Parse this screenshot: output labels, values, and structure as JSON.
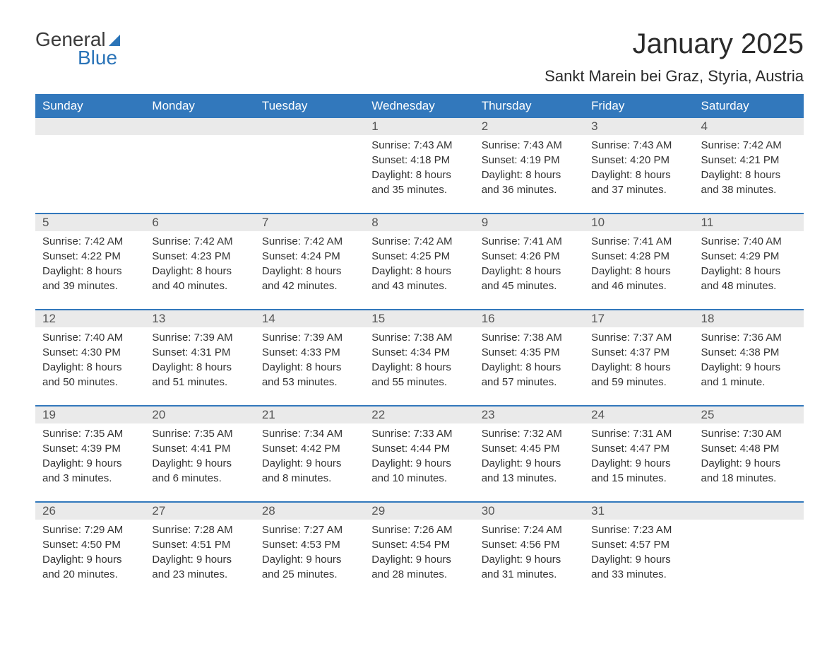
{
  "logo": {
    "general": "General",
    "blue": "Blue"
  },
  "title": "January 2025",
  "location": "Sankt Marein bei Graz, Styria, Austria",
  "colors": {
    "header_bg": "#3278bc",
    "header_text": "#ffffff",
    "daynum_bg": "#eaeaea",
    "daynum_text": "#555555",
    "body_text": "#333333",
    "logo_dark": "#3b3b3b",
    "logo_blue": "#2b74b8",
    "background": "#ffffff"
  },
  "days_of_week": [
    "Sunday",
    "Monday",
    "Tuesday",
    "Wednesday",
    "Thursday",
    "Friday",
    "Saturday"
  ],
  "weeks": [
    [
      {
        "day": "",
        "sunrise": "",
        "sunset": "",
        "daylight1": "",
        "daylight2": ""
      },
      {
        "day": "",
        "sunrise": "",
        "sunset": "",
        "daylight1": "",
        "daylight2": ""
      },
      {
        "day": "",
        "sunrise": "",
        "sunset": "",
        "daylight1": "",
        "daylight2": ""
      },
      {
        "day": "1",
        "sunrise": "Sunrise: 7:43 AM",
        "sunset": "Sunset: 4:18 PM",
        "daylight1": "Daylight: 8 hours",
        "daylight2": "and 35 minutes."
      },
      {
        "day": "2",
        "sunrise": "Sunrise: 7:43 AM",
        "sunset": "Sunset: 4:19 PM",
        "daylight1": "Daylight: 8 hours",
        "daylight2": "and 36 minutes."
      },
      {
        "day": "3",
        "sunrise": "Sunrise: 7:43 AM",
        "sunset": "Sunset: 4:20 PM",
        "daylight1": "Daylight: 8 hours",
        "daylight2": "and 37 minutes."
      },
      {
        "day": "4",
        "sunrise": "Sunrise: 7:42 AM",
        "sunset": "Sunset: 4:21 PM",
        "daylight1": "Daylight: 8 hours",
        "daylight2": "and 38 minutes."
      }
    ],
    [
      {
        "day": "5",
        "sunrise": "Sunrise: 7:42 AM",
        "sunset": "Sunset: 4:22 PM",
        "daylight1": "Daylight: 8 hours",
        "daylight2": "and 39 minutes."
      },
      {
        "day": "6",
        "sunrise": "Sunrise: 7:42 AM",
        "sunset": "Sunset: 4:23 PM",
        "daylight1": "Daylight: 8 hours",
        "daylight2": "and 40 minutes."
      },
      {
        "day": "7",
        "sunrise": "Sunrise: 7:42 AM",
        "sunset": "Sunset: 4:24 PM",
        "daylight1": "Daylight: 8 hours",
        "daylight2": "and 42 minutes."
      },
      {
        "day": "8",
        "sunrise": "Sunrise: 7:42 AM",
        "sunset": "Sunset: 4:25 PM",
        "daylight1": "Daylight: 8 hours",
        "daylight2": "and 43 minutes."
      },
      {
        "day": "9",
        "sunrise": "Sunrise: 7:41 AM",
        "sunset": "Sunset: 4:26 PM",
        "daylight1": "Daylight: 8 hours",
        "daylight2": "and 45 minutes."
      },
      {
        "day": "10",
        "sunrise": "Sunrise: 7:41 AM",
        "sunset": "Sunset: 4:28 PM",
        "daylight1": "Daylight: 8 hours",
        "daylight2": "and 46 minutes."
      },
      {
        "day": "11",
        "sunrise": "Sunrise: 7:40 AM",
        "sunset": "Sunset: 4:29 PM",
        "daylight1": "Daylight: 8 hours",
        "daylight2": "and 48 minutes."
      }
    ],
    [
      {
        "day": "12",
        "sunrise": "Sunrise: 7:40 AM",
        "sunset": "Sunset: 4:30 PM",
        "daylight1": "Daylight: 8 hours",
        "daylight2": "and 50 minutes."
      },
      {
        "day": "13",
        "sunrise": "Sunrise: 7:39 AM",
        "sunset": "Sunset: 4:31 PM",
        "daylight1": "Daylight: 8 hours",
        "daylight2": "and 51 minutes."
      },
      {
        "day": "14",
        "sunrise": "Sunrise: 7:39 AM",
        "sunset": "Sunset: 4:33 PM",
        "daylight1": "Daylight: 8 hours",
        "daylight2": "and 53 minutes."
      },
      {
        "day": "15",
        "sunrise": "Sunrise: 7:38 AM",
        "sunset": "Sunset: 4:34 PM",
        "daylight1": "Daylight: 8 hours",
        "daylight2": "and 55 minutes."
      },
      {
        "day": "16",
        "sunrise": "Sunrise: 7:38 AM",
        "sunset": "Sunset: 4:35 PM",
        "daylight1": "Daylight: 8 hours",
        "daylight2": "and 57 minutes."
      },
      {
        "day": "17",
        "sunrise": "Sunrise: 7:37 AM",
        "sunset": "Sunset: 4:37 PM",
        "daylight1": "Daylight: 8 hours",
        "daylight2": "and 59 minutes."
      },
      {
        "day": "18",
        "sunrise": "Sunrise: 7:36 AM",
        "sunset": "Sunset: 4:38 PM",
        "daylight1": "Daylight: 9 hours",
        "daylight2": "and 1 minute."
      }
    ],
    [
      {
        "day": "19",
        "sunrise": "Sunrise: 7:35 AM",
        "sunset": "Sunset: 4:39 PM",
        "daylight1": "Daylight: 9 hours",
        "daylight2": "and 3 minutes."
      },
      {
        "day": "20",
        "sunrise": "Sunrise: 7:35 AM",
        "sunset": "Sunset: 4:41 PM",
        "daylight1": "Daylight: 9 hours",
        "daylight2": "and 6 minutes."
      },
      {
        "day": "21",
        "sunrise": "Sunrise: 7:34 AM",
        "sunset": "Sunset: 4:42 PM",
        "daylight1": "Daylight: 9 hours",
        "daylight2": "and 8 minutes."
      },
      {
        "day": "22",
        "sunrise": "Sunrise: 7:33 AM",
        "sunset": "Sunset: 4:44 PM",
        "daylight1": "Daylight: 9 hours",
        "daylight2": "and 10 minutes."
      },
      {
        "day": "23",
        "sunrise": "Sunrise: 7:32 AM",
        "sunset": "Sunset: 4:45 PM",
        "daylight1": "Daylight: 9 hours",
        "daylight2": "and 13 minutes."
      },
      {
        "day": "24",
        "sunrise": "Sunrise: 7:31 AM",
        "sunset": "Sunset: 4:47 PM",
        "daylight1": "Daylight: 9 hours",
        "daylight2": "and 15 minutes."
      },
      {
        "day": "25",
        "sunrise": "Sunrise: 7:30 AM",
        "sunset": "Sunset: 4:48 PM",
        "daylight1": "Daylight: 9 hours",
        "daylight2": "and 18 minutes."
      }
    ],
    [
      {
        "day": "26",
        "sunrise": "Sunrise: 7:29 AM",
        "sunset": "Sunset: 4:50 PM",
        "daylight1": "Daylight: 9 hours",
        "daylight2": "and 20 minutes."
      },
      {
        "day": "27",
        "sunrise": "Sunrise: 7:28 AM",
        "sunset": "Sunset: 4:51 PM",
        "daylight1": "Daylight: 9 hours",
        "daylight2": "and 23 minutes."
      },
      {
        "day": "28",
        "sunrise": "Sunrise: 7:27 AM",
        "sunset": "Sunset: 4:53 PM",
        "daylight1": "Daylight: 9 hours",
        "daylight2": "and 25 minutes."
      },
      {
        "day": "29",
        "sunrise": "Sunrise: 7:26 AM",
        "sunset": "Sunset: 4:54 PM",
        "daylight1": "Daylight: 9 hours",
        "daylight2": "and 28 minutes."
      },
      {
        "day": "30",
        "sunrise": "Sunrise: 7:24 AM",
        "sunset": "Sunset: 4:56 PM",
        "daylight1": "Daylight: 9 hours",
        "daylight2": "and 31 minutes."
      },
      {
        "day": "31",
        "sunrise": "Sunrise: 7:23 AM",
        "sunset": "Sunset: 4:57 PM",
        "daylight1": "Daylight: 9 hours",
        "daylight2": "and 33 minutes."
      },
      {
        "day": "",
        "sunrise": "",
        "sunset": "",
        "daylight1": "",
        "daylight2": ""
      }
    ]
  ]
}
